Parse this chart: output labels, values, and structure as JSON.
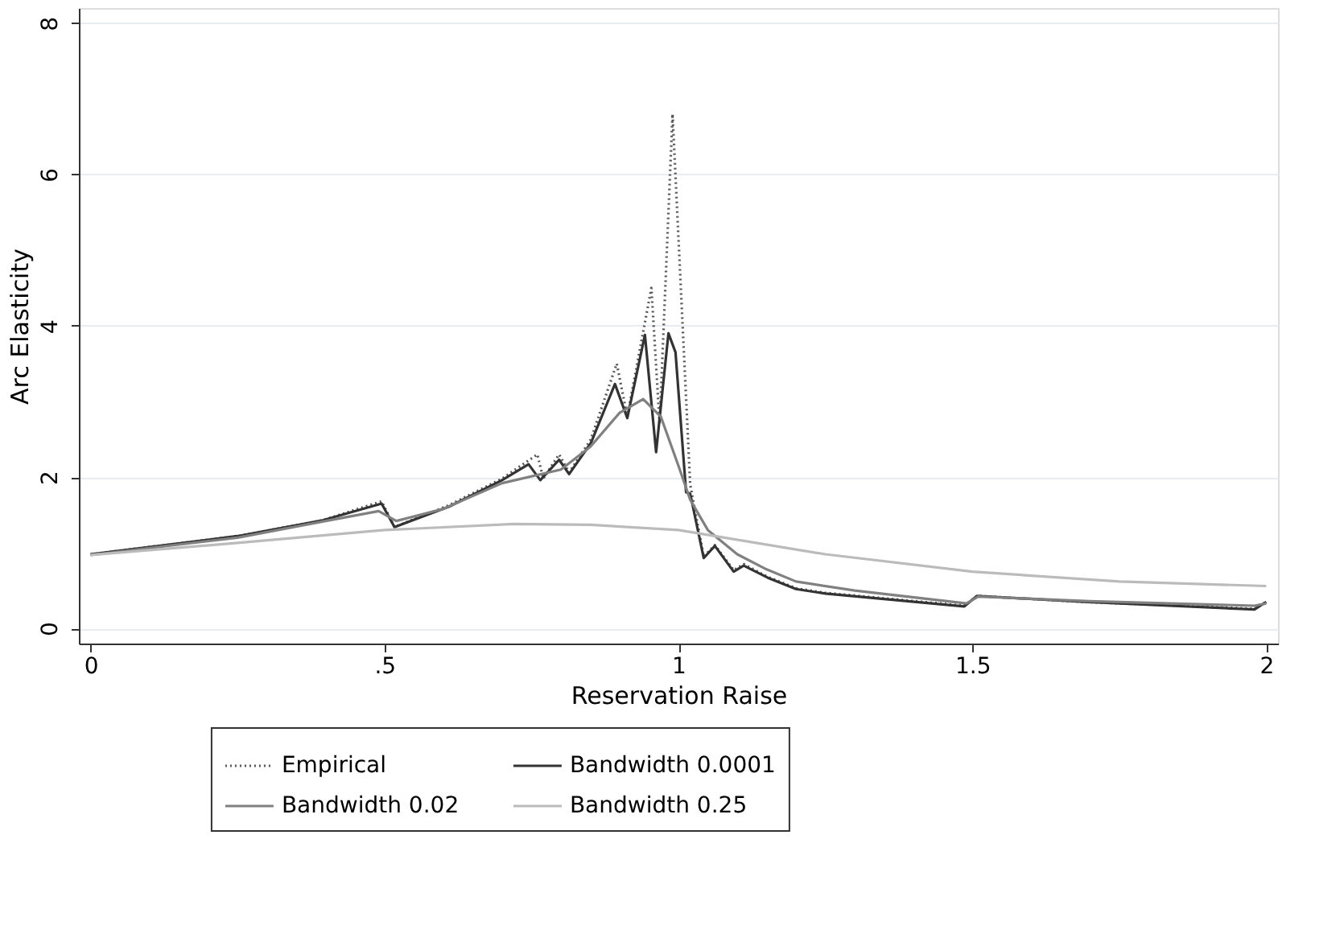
{
  "chart_data": {
    "type": "line",
    "xlabel": "Reservation Raise",
    "ylabel": "Arc Elasticity",
    "xlim": [
      -0.02,
      2.02
    ],
    "ylim": [
      -0.2,
      8.2
    ],
    "xticks": [
      0,
      {
        "value": 0.5,
        "label": ".5"
      },
      1,
      1.5,
      2
    ],
    "yticks": [
      0,
      2,
      4,
      6,
      8
    ],
    "grid": "y",
    "legend": "bottom",
    "marker": "none",
    "series": [
      {
        "name": "Empirical",
        "color": "#555555",
        "line_style": "dotted",
        "x": [
          0,
          0.25,
          0.395,
          0.495,
          0.517,
          0.61,
          0.7,
          0.76,
          0.77,
          0.797,
          0.814,
          0.851,
          0.895,
          0.913,
          0.954,
          0.968,
          0.99,
          1.02,
          1.043,
          1.062,
          1.094,
          1.111,
          1.152,
          1.2,
          1.25,
          1.486,
          1.508,
          1.69,
          1.98,
          2.0
        ],
        "values": [
          0.98,
          1.22,
          1.43,
          1.68,
          1.34,
          1.63,
          1.98,
          2.3,
          1.98,
          2.3,
          2.06,
          2.5,
          3.5,
          2.8,
          4.5,
          2.7,
          6.8,
          1.9,
          0.95,
          1.1,
          0.77,
          0.85,
          0.68,
          0.53,
          0.47,
          0.3,
          0.43,
          0.35,
          0.26,
          0.35
        ]
      },
      {
        "name": "Bandwidth 0.0001",
        "color": "#333333",
        "line_style": "solid",
        "x": [
          0,
          0.25,
          0.395,
          0.495,
          0.517,
          0.61,
          0.7,
          0.745,
          0.765,
          0.797,
          0.814,
          0.851,
          0.892,
          0.913,
          0.943,
          0.962,
          0.983,
          0.995,
          1.013,
          1.02,
          1.043,
          1.062,
          1.094,
          1.111,
          1.152,
          1.2,
          1.25,
          1.486,
          1.508,
          1.69,
          1.98,
          2.0
        ],
        "values": [
          0.98,
          1.22,
          1.43,
          1.65,
          1.34,
          1.61,
          1.96,
          2.17,
          1.96,
          2.23,
          2.04,
          2.45,
          3.23,
          2.78,
          3.88,
          2.33,
          3.9,
          3.65,
          1.8,
          1.78,
          0.93,
          1.09,
          0.75,
          0.83,
          0.67,
          0.52,
          0.46,
          0.29,
          0.43,
          0.35,
          0.25,
          0.35
        ]
      },
      {
        "name": "Bandwidth 0.02",
        "color": "#808080",
        "line_style": "solid",
        "x": [
          0,
          0.25,
          0.4,
          0.49,
          0.52,
          0.6,
          0.7,
          0.8,
          0.85,
          0.9,
          0.94,
          0.97,
          1.0,
          1.02,
          1.05,
          1.1,
          1.15,
          1.2,
          1.3,
          1.49,
          1.51,
          1.7,
          1.98,
          2.0
        ],
        "values": [
          0.97,
          1.2,
          1.42,
          1.55,
          1.42,
          1.58,
          1.92,
          2.1,
          2.4,
          2.85,
          3.03,
          2.8,
          2.15,
          1.7,
          1.3,
          0.98,
          0.78,
          0.62,
          0.5,
          0.33,
          0.42,
          0.36,
          0.3,
          0.33
        ]
      },
      {
        "name": "Bandwidth 0.25",
        "color": "#bbbbbb",
        "line_style": "solid",
        "x": [
          0,
          0.25,
          0.5,
          0.72,
          0.85,
          1.0,
          1.062,
          1.25,
          1.5,
          1.75,
          2.0
        ],
        "values": [
          0.97,
          1.13,
          1.3,
          1.38,
          1.37,
          1.3,
          1.22,
          0.98,
          0.75,
          0.62,
          0.56
        ]
      }
    ]
  }
}
